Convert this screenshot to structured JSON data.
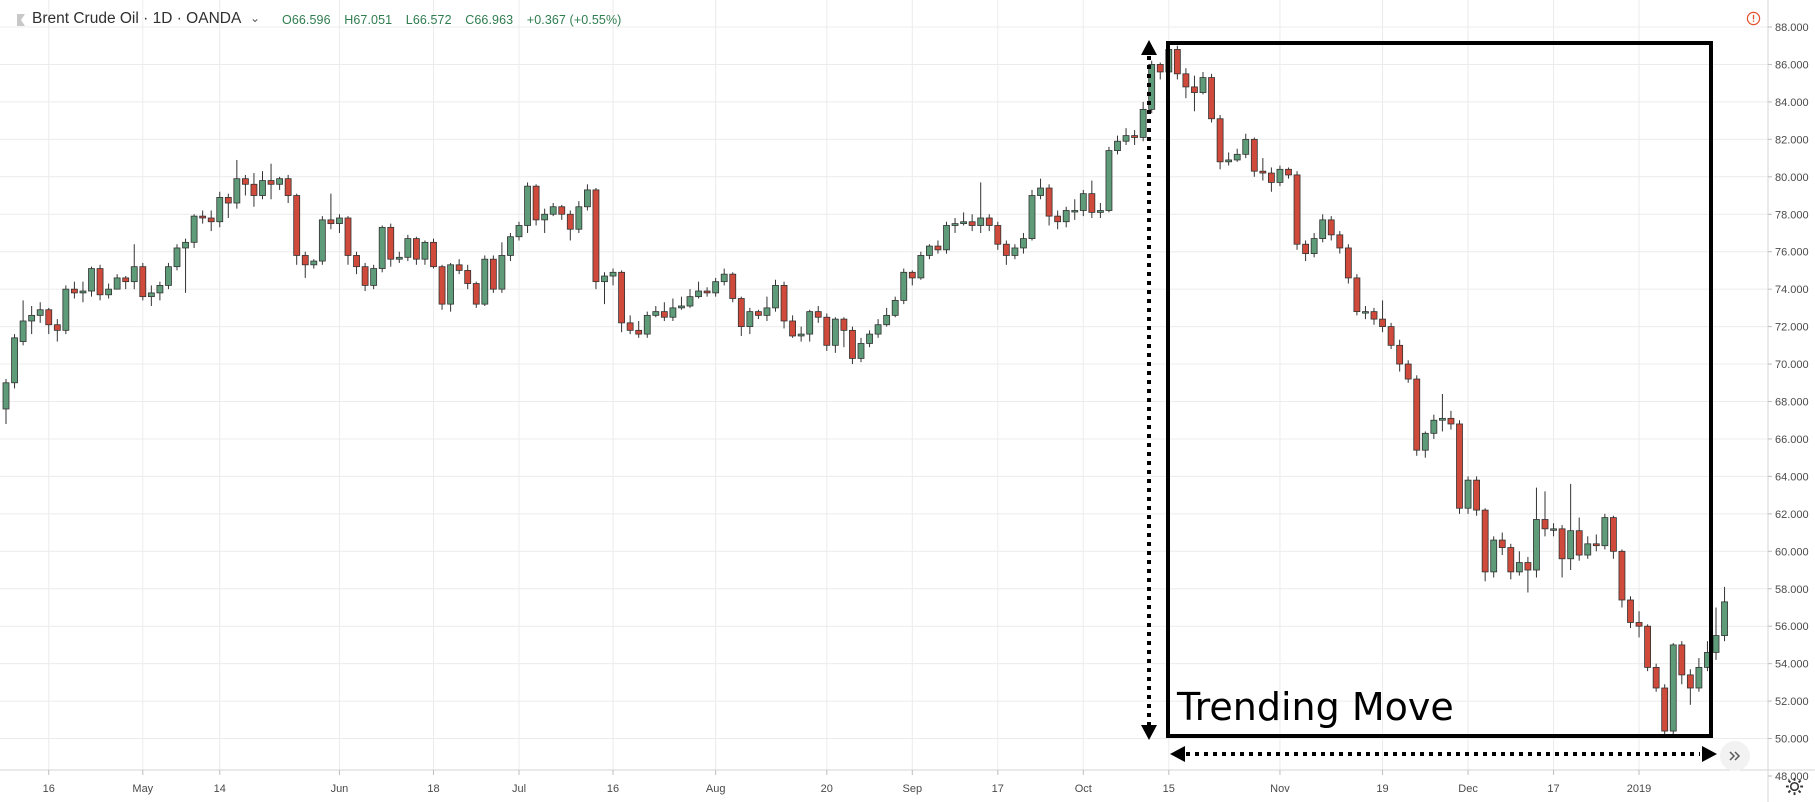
{
  "header": {
    "symbol": "Brent Crude Oil · 1D · OANDA",
    "open": "O66.596",
    "high": "H67.051",
    "low": "L66.572",
    "close": "C66.963",
    "change": "+0.367 (+0.55%)"
  },
  "annotation": {
    "label": "Trending Move"
  },
  "colors": {
    "up": "#5e9b79",
    "down": "#cf4a3b",
    "grid": "#ececec",
    "axis_text": "#4a4a4a",
    "box": "#000000"
  },
  "chart_data": {
    "type": "candlestick",
    "ylim": [
      48,
      89
    ],
    "y_ticks": [
      "48.000",
      "50.000",
      "52.000",
      "54.000",
      "56.000",
      "58.000",
      "60.000",
      "62.000",
      "64.000",
      "66.000",
      "68.000",
      "70.000",
      "72.000",
      "74.000",
      "76.000",
      "78.000",
      "80.000",
      "82.000",
      "84.000",
      "86.000",
      "88.000"
    ],
    "x_ticks": [
      {
        "i": 5,
        "label": "16"
      },
      {
        "i": 16,
        "label": "May"
      },
      {
        "i": 25,
        "label": "14"
      },
      {
        "i": 39,
        "label": "Jun"
      },
      {
        "i": 50,
        "label": "18"
      },
      {
        "i": 60,
        "label": "Jul"
      },
      {
        "i": 71,
        "label": "16"
      },
      {
        "i": 83,
        "label": "Aug"
      },
      {
        "i": 96,
        "label": "20"
      },
      {
        "i": 106,
        "label": "Sep"
      },
      {
        "i": 116,
        "label": "17"
      },
      {
        "i": 126,
        "label": "Oct"
      },
      {
        "i": 136,
        "label": "15"
      },
      {
        "i": 149,
        "label": "Nov"
      },
      {
        "i": 161,
        "label": "19"
      },
      {
        "i": 171,
        "label": "Dec"
      },
      {
        "i": 181,
        "label": "17"
      },
      {
        "i": 191,
        "label": "2019"
      }
    ],
    "candles": [
      [
        67.6,
        69.0,
        66.8,
        69.2
      ],
      [
        69.0,
        71.4,
        68.7,
        71.6
      ],
      [
        71.2,
        72.3,
        71.0,
        73.4
      ],
      [
        72.3,
        72.6,
        71.6,
        73.1
      ],
      [
        72.6,
        72.9,
        72.2,
        73.3
      ],
      [
        72.9,
        72.1,
        71.6,
        73.0
      ],
      [
        72.1,
        71.8,
        71.2,
        72.4
      ],
      [
        71.8,
        74.0,
        71.6,
        74.2
      ],
      [
        74.0,
        73.8,
        73.5,
        74.4
      ],
      [
        73.8,
        73.9,
        73.3,
        74.4
      ],
      [
        73.9,
        75.1,
        73.6,
        75.2
      ],
      [
        75.1,
        73.7,
        73.4,
        75.3
      ],
      [
        73.7,
        74.0,
        73.5,
        74.3
      ],
      [
        74.0,
        74.6,
        74.0,
        74.8
      ],
      [
        74.6,
        74.4,
        74.0,
        74.7
      ],
      [
        74.4,
        75.2,
        74.0,
        76.4
      ],
      [
        75.2,
        73.6,
        73.4,
        75.4
      ],
      [
        73.6,
        73.8,
        73.1,
        74.2
      ],
      [
        73.8,
        74.2,
        73.4,
        74.4
      ],
      [
        74.2,
        75.2,
        74.0,
        75.4
      ],
      [
        75.2,
        76.2,
        75.0,
        76.4
      ],
      [
        76.2,
        76.5,
        73.8,
        76.7
      ],
      [
        76.5,
        77.9,
        76.2,
        78.0
      ],
      [
        77.9,
        77.8,
        77.5,
        78.2
      ],
      [
        77.8,
        77.6,
        77.1,
        78.2
      ],
      [
        77.6,
        78.9,
        77.3,
        79.2
      ],
      [
        78.9,
        78.6,
        77.8,
        79.1
      ],
      [
        78.6,
        79.9,
        78.3,
        80.9
      ],
      [
        79.9,
        79.6,
        79.0,
        80.1
      ],
      [
        79.6,
        79.0,
        78.4,
        80.2
      ],
      [
        79.0,
        79.8,
        78.8,
        80.3
      ],
      [
        79.8,
        79.6,
        78.8,
        80.7
      ],
      [
        79.6,
        79.9,
        79.3,
        80.0
      ],
      [
        79.9,
        79.0,
        78.6,
        80.1
      ],
      [
        79.0,
        75.8,
        75.3,
        79.1
      ],
      [
        75.8,
        75.3,
        74.6,
        76.0
      ],
      [
        75.3,
        75.5,
        75.1,
        75.6
      ],
      [
        75.5,
        77.7,
        75.3,
        77.9
      ],
      [
        77.7,
        77.5,
        77.2,
        79.1
      ],
      [
        77.5,
        77.8,
        77.0,
        78.0
      ],
      [
        77.8,
        75.8,
        75.3,
        77.9
      ],
      [
        75.8,
        75.2,
        74.8,
        76.0
      ],
      [
        75.2,
        74.2,
        73.9,
        75.4
      ],
      [
        74.2,
        75.1,
        74.0,
        75.3
      ],
      [
        75.1,
        77.3,
        74.9,
        77.4
      ],
      [
        77.3,
        75.6,
        75.2,
        77.5
      ],
      [
        75.6,
        75.7,
        75.4,
        76.0
      ],
      [
        75.7,
        76.7,
        75.5,
        76.9
      ],
      [
        76.7,
        75.6,
        75.3,
        76.8
      ],
      [
        75.6,
        76.5,
        75.3,
        76.6
      ],
      [
        76.5,
        75.2,
        75.1,
        76.7
      ],
      [
        75.2,
        73.2,
        72.9,
        75.3
      ],
      [
        73.2,
        75.3,
        72.8,
        75.4
      ],
      [
        75.3,
        75.0,
        74.8,
        75.6
      ],
      [
        75.0,
        74.3,
        74.0,
        75.3
      ],
      [
        74.3,
        73.2,
        73.0,
        74.4
      ],
      [
        73.2,
        75.6,
        73.1,
        75.8
      ],
      [
        75.6,
        74.0,
        73.8,
        75.8
      ],
      [
        74.0,
        75.8,
        73.8,
        76.5
      ],
      [
        75.8,
        76.8,
        75.5,
        77.0
      ],
      [
        76.8,
        77.4,
        76.6,
        77.6
      ],
      [
        77.4,
        79.5,
        77.0,
        79.7
      ],
      [
        79.5,
        77.7,
        77.4,
        79.6
      ],
      [
        77.7,
        78.0,
        77.0,
        78.3
      ],
      [
        78.0,
        78.4,
        77.9,
        78.6
      ],
      [
        78.4,
        78.0,
        77.7,
        78.5
      ],
      [
        78.0,
        77.2,
        76.6,
        78.2
      ],
      [
        77.2,
        78.4,
        77.0,
        78.7
      ],
      [
        78.4,
        79.3,
        78.2,
        79.6
      ],
      [
        79.3,
        74.4,
        74.0,
        79.4
      ],
      [
        74.4,
        74.7,
        73.2,
        74.9
      ],
      [
        74.7,
        74.9,
        74.2,
        75.1
      ],
      [
        74.9,
        72.2,
        71.7,
        75.0
      ],
      [
        72.2,
        71.8,
        71.6,
        72.6
      ],
      [
        71.8,
        71.6,
        71.4,
        72.3
      ],
      [
        71.6,
        72.6,
        71.4,
        72.8
      ],
      [
        72.6,
        72.8,
        72.5,
        73.1
      ],
      [
        72.8,
        72.5,
        72.3,
        73.3
      ],
      [
        72.5,
        73.0,
        72.3,
        73.5
      ],
      [
        73.0,
        73.1,
        72.9,
        73.6
      ],
      [
        73.1,
        73.6,
        73.0,
        74.0
      ],
      [
        73.6,
        73.9,
        73.5,
        74.4
      ],
      [
        73.9,
        73.8,
        73.6,
        74.1
      ],
      [
        73.8,
        74.4,
        73.6,
        74.6
      ],
      [
        74.4,
        74.8,
        74.2,
        75.1
      ],
      [
        74.8,
        73.5,
        73.3,
        74.9
      ],
      [
        73.5,
        72.0,
        71.5,
        73.6
      ],
      [
        72.0,
        72.8,
        71.6,
        73.0
      ],
      [
        72.8,
        72.6,
        72.4,
        72.9
      ],
      [
        72.6,
        73.0,
        72.3,
        73.6
      ],
      [
        73.0,
        74.2,
        72.8,
        74.5
      ],
      [
        74.2,
        72.3,
        71.9,
        74.4
      ],
      [
        72.3,
        71.5,
        71.4,
        72.6
      ],
      [
        71.5,
        71.6,
        71.2,
        72.0
      ],
      [
        71.6,
        72.8,
        71.2,
        72.9
      ],
      [
        72.8,
        72.5,
        72.2,
        73.1
      ],
      [
        72.5,
        71.0,
        70.7,
        72.7
      ],
      [
        71.0,
        72.4,
        70.6,
        72.5
      ],
      [
        72.4,
        71.8,
        70.9,
        72.5
      ],
      [
        71.8,
        70.3,
        70.0,
        72.0
      ],
      [
        70.3,
        71.1,
        70.1,
        71.4
      ],
      [
        71.1,
        71.6,
        70.9,
        71.8
      ],
      [
        71.6,
        72.1,
        71.4,
        72.4
      ],
      [
        72.1,
        72.6,
        72.0,
        73.0
      ],
      [
        72.6,
        73.4,
        72.5,
        73.6
      ],
      [
        73.4,
        74.9,
        73.2,
        75.1
      ],
      [
        74.9,
        74.6,
        74.2,
        75.0
      ],
      [
        74.6,
        75.8,
        74.5,
        76.0
      ],
      [
        75.8,
        76.3,
        75.6,
        76.4
      ],
      [
        76.3,
        76.1,
        75.9,
        76.6
      ],
      [
        76.1,
        77.4,
        75.9,
        77.6
      ],
      [
        77.4,
        77.5,
        77.0,
        77.8
      ],
      [
        77.5,
        77.6,
        77.4,
        78.1
      ],
      [
        77.6,
        77.4,
        77.1,
        78.0
      ],
      [
        77.4,
        77.8,
        77.0,
        79.7
      ],
      [
        77.8,
        77.4,
        77.1,
        78.0
      ],
      [
        77.4,
        76.4,
        76.1,
        77.6
      ],
      [
        76.4,
        75.8,
        75.3,
        76.6
      ],
      [
        75.8,
        76.2,
        75.6,
        76.4
      ],
      [
        76.2,
        76.7,
        75.9,
        77.0
      ],
      [
        76.7,
        79.0,
        76.6,
        79.3
      ],
      [
        79.0,
        79.4,
        78.8,
        79.9
      ],
      [
        79.4,
        77.9,
        77.4,
        79.6
      ],
      [
        77.9,
        77.6,
        77.2,
        78.2
      ],
      [
        77.6,
        78.2,
        77.3,
        78.4
      ],
      [
        78.2,
        78.2,
        77.7,
        78.8
      ],
      [
        78.2,
        79.1,
        77.9,
        79.3
      ],
      [
        79.1,
        78.1,
        77.8,
        79.8
      ],
      [
        78.1,
        78.2,
        77.8,
        78.6
      ],
      [
        78.2,
        81.4,
        78.1,
        81.6
      ],
      [
        81.4,
        81.9,
        81.2,
        82.2
      ],
      [
        81.9,
        82.2,
        81.7,
        82.6
      ],
      [
        82.2,
        82.1,
        81.7,
        82.5
      ],
      [
        82.1,
        83.6,
        81.9,
        84.0
      ],
      [
        83.6,
        86.0,
        83.4,
        86.2
      ],
      [
        86.0,
        85.6,
        85.2,
        86.1
      ],
      [
        85.6,
        86.8,
        85.4,
        87.2
      ],
      [
        86.8,
        85.5,
        85.2,
        87.0
      ],
      [
        85.5,
        84.8,
        84.2,
        85.8
      ],
      [
        84.8,
        84.5,
        83.5,
        85.4
      ],
      [
        84.5,
        85.3,
        84.4,
        85.6
      ],
      [
        85.3,
        83.1,
        82.9,
        85.5
      ],
      [
        83.1,
        80.8,
        80.4,
        83.3
      ],
      [
        80.8,
        80.9,
        80.6,
        81.3
      ],
      [
        80.9,
        81.2,
        80.8,
        81.5
      ],
      [
        81.2,
        82.0,
        81.0,
        82.3
      ],
      [
        82.0,
        80.3,
        80.0,
        82.1
      ],
      [
        80.3,
        80.2,
        79.8,
        81.0
      ],
      [
        80.2,
        79.7,
        79.2,
        80.5
      ],
      [
        79.7,
        80.4,
        79.5,
        80.6
      ],
      [
        80.4,
        80.1,
        79.9,
        80.5
      ],
      [
        80.1,
        76.4,
        76.1,
        80.3
      ],
      [
        76.4,
        75.9,
        75.5,
        76.6
      ],
      [
        75.9,
        76.7,
        75.7,
        77.0
      ],
      [
        76.7,
        77.7,
        76.5,
        78.0
      ],
      [
        77.7,
        76.9,
        76.6,
        77.9
      ],
      [
        76.9,
        76.2,
        75.9,
        77.1
      ],
      [
        76.2,
        74.6,
        74.3,
        76.4
      ],
      [
        74.6,
        72.8,
        72.6,
        74.8
      ],
      [
        72.8,
        72.8,
        72.4,
        73.1
      ],
      [
        72.8,
        72.4,
        72.1,
        73.0
      ],
      [
        72.4,
        72.0,
        71.7,
        73.4
      ],
      [
        72.0,
        71.0,
        70.8,
        72.2
      ],
      [
        71.0,
        70.0,
        69.6,
        71.3
      ],
      [
        70.0,
        69.2,
        69.0,
        70.2
      ],
      [
        69.2,
        65.4,
        65.1,
        69.4
      ],
      [
        65.4,
        66.3,
        65.0,
        66.4
      ],
      [
        66.3,
        67.0,
        66.0,
        67.3
      ],
      [
        67.0,
        67.1,
        66.4,
        68.4
      ],
      [
        67.1,
        66.8,
        66.5,
        67.5
      ],
      [
        66.8,
        62.3,
        62.0,
        67.0
      ],
      [
        62.3,
        63.8,
        62.0,
        64.0
      ],
      [
        63.8,
        62.2,
        61.9,
        64.0
      ],
      [
        62.2,
        58.9,
        58.4,
        62.3
      ],
      [
        58.9,
        60.6,
        58.6,
        60.8
      ],
      [
        60.6,
        60.2,
        59.8,
        61.0
      ],
      [
        60.2,
        58.9,
        58.5,
        60.4
      ],
      [
        58.9,
        59.4,
        58.7,
        60.0
      ],
      [
        59.4,
        59.0,
        57.8,
        59.7
      ],
      [
        59.0,
        61.7,
        58.6,
        63.4
      ],
      [
        61.7,
        61.2,
        60.8,
        63.2
      ],
      [
        61.2,
        61.2,
        60.8,
        61.5
      ],
      [
        61.2,
        59.6,
        58.6,
        61.4
      ],
      [
        59.6,
        61.1,
        59.0,
        63.6
      ],
      [
        61.1,
        59.8,
        59.5,
        61.8
      ],
      [
        59.8,
        60.4,
        59.6,
        60.8
      ],
      [
        60.4,
        60.3,
        60.0,
        60.9
      ],
      [
        60.3,
        61.8,
        60.1,
        62.0
      ],
      [
        61.8,
        60.0,
        59.6,
        61.9
      ],
      [
        60.0,
        57.4,
        57.0,
        60.1
      ],
      [
        57.4,
        56.2,
        55.9,
        57.6
      ],
      [
        56.2,
        56.0,
        55.4,
        56.8
      ],
      [
        56.0,
        53.8,
        53.6,
        56.1
      ],
      [
        53.8,
        52.7,
        52.5,
        54.0
      ],
      [
        52.7,
        50.4,
        50.1,
        52.9
      ],
      [
        50.4,
        55.0,
        50.2,
        55.1
      ],
      [
        55.0,
        53.4,
        52.9,
        55.2
      ],
      [
        53.4,
        52.7,
        51.8,
        53.7
      ],
      [
        52.7,
        53.8,
        52.5,
        54.3
      ],
      [
        53.8,
        54.6,
        53.6,
        55.2
      ],
      [
        54.6,
        55.5,
        54.2,
        57.0
      ],
      [
        55.5,
        57.3,
        55.2,
        58.1
      ]
    ]
  }
}
